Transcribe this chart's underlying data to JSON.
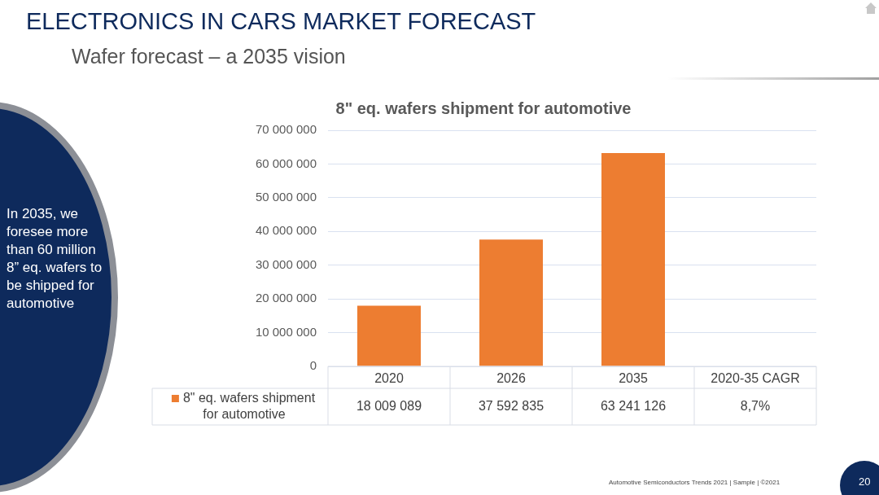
{
  "chart_data": {
    "type": "bar",
    "title": "8\" eq. wafers shipment for automotive",
    "categories": [
      "2020",
      "2026",
      "2035",
      "2020-35 CAGR"
    ],
    "series": [
      {
        "name": "8\" eq. wafers shipment for automotive",
        "color": "#ed7d31",
        "values": [
          18009089,
          37592835,
          63241126,
          null
        ],
        "value_labels": [
          "18 009 089",
          "37 592 835",
          "63 241 126",
          "8,7%"
        ]
      }
    ],
    "ylim": [
      0,
      70000000
    ],
    "yticks": [
      0,
      {
        "value": 10000000,
        "label": "10 000 000"
      },
      {
        "value": 20000000,
        "label": "20 000 000"
      },
      {
        "value": 30000000,
        "label": "30 000 000"
      },
      {
        "value": 40000000,
        "label": "40 000 000"
      },
      {
        "value": 50000000,
        "label": "50 000 000"
      },
      {
        "value": 60000000,
        "label": "60 000 000"
      },
      {
        "value": 70000000,
        "label": "70 000 000"
      }
    ],
    "grid": "y",
    "legend": "bottom left",
    "annotations": [
      "ELECTRONICS IN CARS MARKET FORECAST",
      "Wafer forecast – a 2035 vision",
      "In 2035, we foresee more than 60 million 8” eq. wafers to be shipped for automotive",
      "Automotive Semiconductors Trends 2021 | Sample | ©2021",
      "20"
    ]
  }
}
